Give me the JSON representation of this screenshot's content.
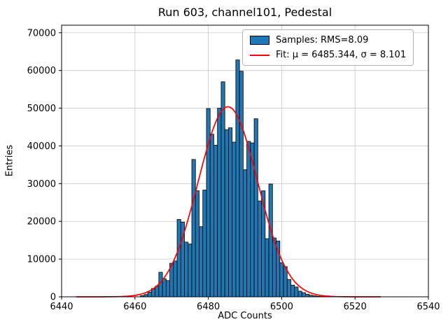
{
  "chart_data": {
    "type": "bar",
    "title": "Run 603, channel101, Pedestal",
    "xlabel": "ADC Counts",
    "ylabel": "Entries",
    "xlim": [
      6440,
      6540
    ],
    "ylim": [
      0,
      72000
    ],
    "xticks": [
      6440,
      6460,
      6480,
      6500,
      6520,
      6540
    ],
    "yticks": [
      0,
      10000,
      20000,
      30000,
      40000,
      50000,
      60000,
      70000
    ],
    "grid": true,
    "legend_position": "upper right",
    "series_label": "Samples: RMS=8.09",
    "bar_color": "#1f77b4",
    "bar_edge_color": "#000000",
    "grid_color": "#c9c9c9",
    "bin_width": 1,
    "bin_centers": [
      6462,
      6463,
      6464,
      6465,
      6466,
      6467,
      6468,
      6469,
      6470,
      6471,
      6472,
      6473,
      6474,
      6475,
      6476,
      6477,
      6478,
      6479,
      6480,
      6481,
      6482,
      6483,
      6484,
      6485,
      6486,
      6487,
      6488,
      6489,
      6490,
      6491,
      6492,
      6493,
      6494,
      6495,
      6496,
      6497,
      6498,
      6499,
      6500,
      6501,
      6502,
      6503,
      6504,
      6505,
      6506,
      6507,
      6508,
      6509,
      6510,
      6511,
      6512
    ],
    "counts": [
      300,
      600,
      1200,
      2200,
      2800,
      6500,
      4800,
      4300,
      8900,
      9500,
      20500,
      19800,
      14500,
      14000,
      36400,
      28100,
      18600,
      28300,
      49900,
      43100,
      40200,
      50000,
      57000,
      44300,
      44800,
      41000,
      62800,
      59800,
      33700,
      41200,
      40800,
      47200,
      25400,
      28100,
      15400,
      29900,
      15600,
      14800,
      9000,
      8000,
      4600,
      3100,
      2600,
      1500,
      1100,
      700,
      420,
      260,
      150,
      80,
      40
    ],
    "fit": {
      "type": "gaussian",
      "label": "Fit: μ = 6485.344, σ = 8.101",
      "mu": 6485.344,
      "sigma": 8.101,
      "amplitude": 50400,
      "x_range": [
        6444,
        6527
      ],
      "color": "#ff0000"
    }
  }
}
